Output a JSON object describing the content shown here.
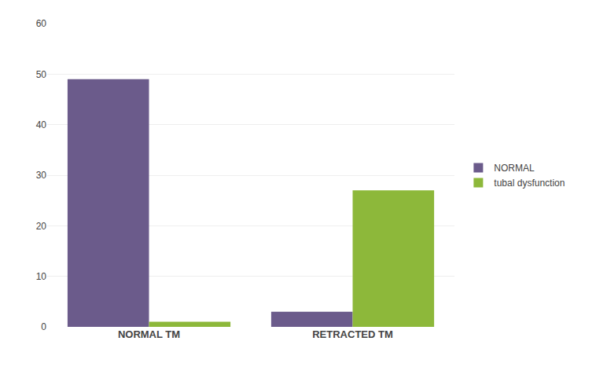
{
  "chart_data": {
    "type": "bar",
    "categories": [
      "NORMAL TM",
      "RETRACTED TM"
    ],
    "series": [
      {
        "name": "NORMAL",
        "values": [
          49,
          3
        ],
        "color": "#6b5b8b"
      },
      {
        "name": "tubal dysfunction",
        "values": [
          1,
          27
        ],
        "color": "#8db83a"
      }
    ],
    "ylim": [
      0,
      60
    ],
    "yticks": [
      0,
      10,
      20,
      30,
      40,
      50,
      60
    ],
    "grid": true,
    "legend": "right"
  }
}
